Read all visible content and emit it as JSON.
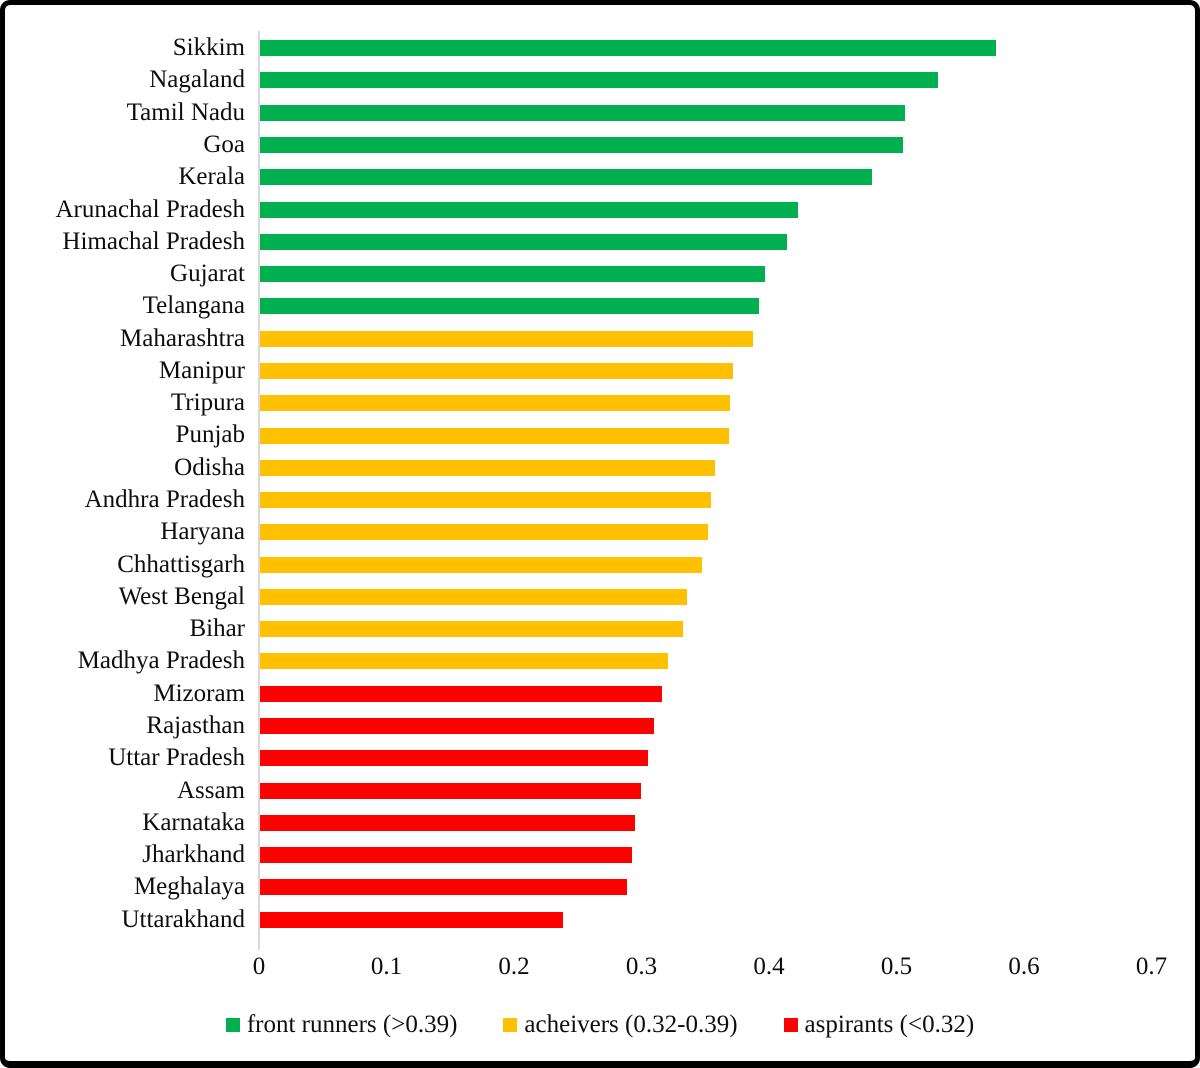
{
  "chart_data": {
    "type": "bar",
    "orientation": "horizontal",
    "title": "",
    "xlabel": "",
    "ylabel": "",
    "xlim": [
      0,
      0.7
    ],
    "x_ticks": [
      "0",
      "0.1",
      "0.2",
      "0.3",
      "0.4",
      "0.5",
      "0.6",
      "0.7"
    ],
    "grid": false,
    "legend_position": "bottom",
    "group_colors": {
      "front_runners": "#00B050",
      "acheivers": "#FFC000",
      "aspirants": "#FF0000"
    },
    "axis_line_color": "#D9D9D9",
    "bars": [
      {
        "name": "Sikkim",
        "value": 0.577,
        "group": "front_runners"
      },
      {
        "name": "Nagaland",
        "value": 0.532,
        "group": "front_runners"
      },
      {
        "name": "Tamil Nadu",
        "value": 0.506,
        "group": "front_runners"
      },
      {
        "name": "Goa",
        "value": 0.504,
        "group": "front_runners"
      },
      {
        "name": "Kerala",
        "value": 0.48,
        "group": "front_runners"
      },
      {
        "name": "Arunachal Pradesh",
        "value": 0.422,
        "group": "front_runners"
      },
      {
        "name": "Himachal Pradesh",
        "value": 0.413,
        "group": "front_runners"
      },
      {
        "name": "Gujarat",
        "value": 0.396,
        "group": "front_runners"
      },
      {
        "name": "Telangana",
        "value": 0.391,
        "group": "front_runners"
      },
      {
        "name": "Maharashtra",
        "value": 0.387,
        "group": "acheivers"
      },
      {
        "name": "Manipur",
        "value": 0.371,
        "group": "acheivers"
      },
      {
        "name": "Tripura",
        "value": 0.369,
        "group": "acheivers"
      },
      {
        "name": "Punjab",
        "value": 0.368,
        "group": "acheivers"
      },
      {
        "name": "Odisha",
        "value": 0.357,
        "group": "acheivers"
      },
      {
        "name": "Andhra Pradesh",
        "value": 0.354,
        "group": "acheivers"
      },
      {
        "name": "Haryana",
        "value": 0.351,
        "group": "acheivers"
      },
      {
        "name": "Chhattisgarh",
        "value": 0.347,
        "group": "acheivers"
      },
      {
        "name": "West Bengal",
        "value": 0.335,
        "group": "acheivers"
      },
      {
        "name": "Bihar",
        "value": 0.332,
        "group": "acheivers"
      },
      {
        "name": "Madhya Pradesh",
        "value": 0.32,
        "group": "acheivers"
      },
      {
        "name": "Mizoram",
        "value": 0.315,
        "group": "aspirants"
      },
      {
        "name": "Rajasthan",
        "value": 0.309,
        "group": "aspirants"
      },
      {
        "name": "Uttar Pradesh",
        "value": 0.304,
        "group": "aspirants"
      },
      {
        "name": "Assam",
        "value": 0.299,
        "group": "aspirants"
      },
      {
        "name": "Karnataka",
        "value": 0.294,
        "group": "aspirants"
      },
      {
        "name": "Jharkhand",
        "value": 0.292,
        "group": "aspirants"
      },
      {
        "name": "Meghalaya",
        "value": 0.288,
        "group": "aspirants"
      },
      {
        "name": "Uttarakhand",
        "value": 0.238,
        "group": "aspirants"
      }
    ],
    "legend": [
      {
        "label": "front runners (>0.39)",
        "group": "front_runners",
        "color": "#00B050"
      },
      {
        "label": "acheivers (0.32-0.39)",
        "group": "acheivers",
        "color": "#FFC000"
      },
      {
        "label": "aspirants (<0.32)",
        "group": "aspirants",
        "color": "#FF0000"
      }
    ]
  }
}
